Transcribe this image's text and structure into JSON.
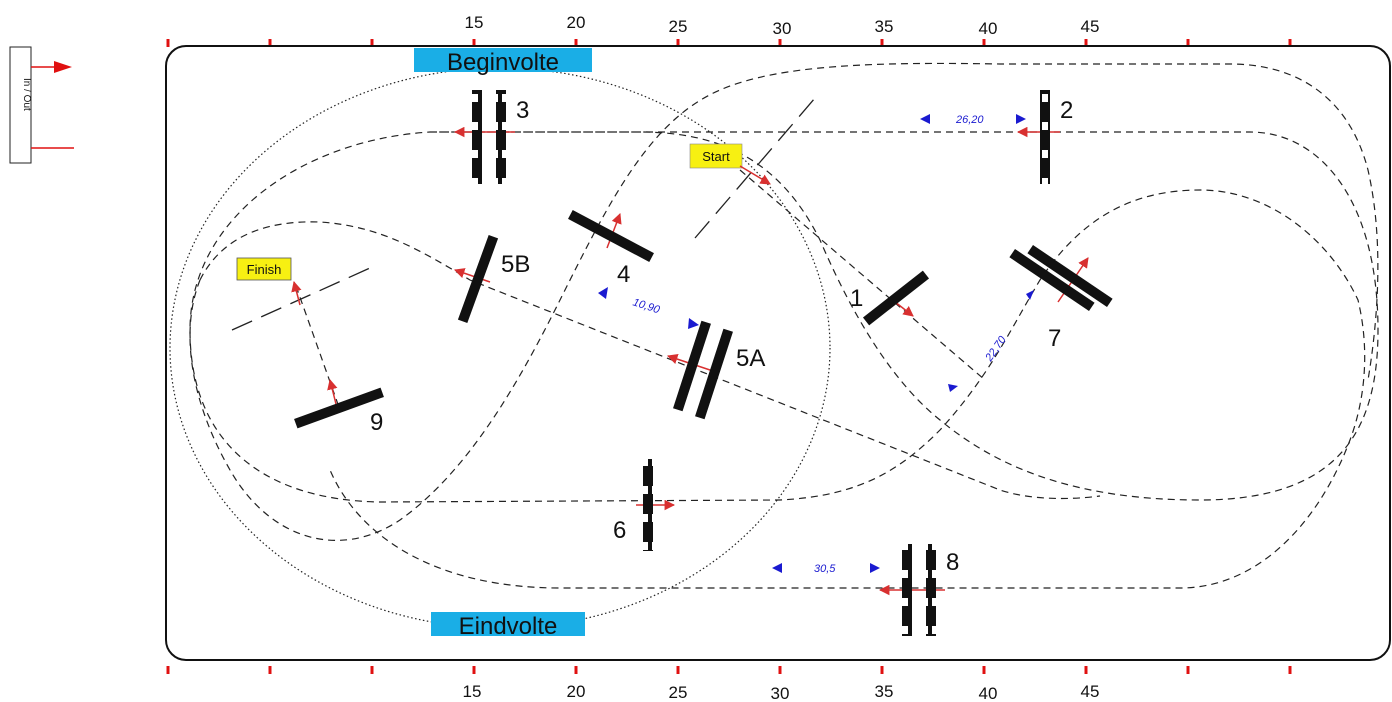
{
  "inout": {
    "label": "In / Out"
  },
  "ruler": {
    "top_labels": [
      "15",
      "20",
      "25",
      "30",
      "35",
      "40",
      "45"
    ],
    "bottom_labels": [
      "15",
      "20",
      "25",
      "30",
      "35",
      "40",
      "45"
    ]
  },
  "voltes": {
    "begin": "Beginvolte",
    "end": "Eindvolte"
  },
  "tags": {
    "start": "Start",
    "finish": "Finish"
  },
  "gates": [
    {
      "id": "g1",
      "label": "1"
    },
    {
      "id": "g2",
      "label": "2"
    },
    {
      "id": "g3",
      "label": "3"
    },
    {
      "id": "g4",
      "label": "4"
    },
    {
      "id": "g5a",
      "label": "5A"
    },
    {
      "id": "g5b",
      "label": "5B"
    },
    {
      "id": "g6",
      "label": "6"
    },
    {
      "id": "g7",
      "label": "7"
    },
    {
      "id": "g8",
      "label": "8"
    },
    {
      "id": "g9",
      "label": "9"
    }
  ],
  "distances": {
    "top": "26,20",
    "middle": "10,90",
    "diagonal": "22,70",
    "bottom": "30,5"
  },
  "colors": {
    "tick_red": "#e01010",
    "arrow_red": "#d83030",
    "dist_blue": "#1a1ad0",
    "volte_blue": "#1aaee6",
    "tag_yellow": "#f7f012",
    "pole_black": "#111111"
  }
}
